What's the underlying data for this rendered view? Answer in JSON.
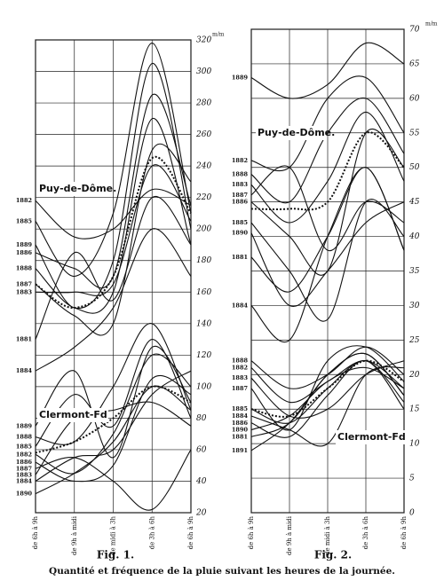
{
  "chart_data": [
    {
      "type": "line",
      "title": "Fig. 1.",
      "y_unit": "m/m",
      "categories": [
        "de 6h à 9h",
        "de 9h à midi",
        "de midi à 3h",
        "de 3h à 6h",
        "de 6h à 9h"
      ],
      "ylim": [
        20,
        320
      ],
      "yticks": [
        20,
        40,
        60,
        80,
        100,
        120,
        140,
        160,
        180,
        200,
        220,
        240,
        260,
        280,
        300,
        320
      ],
      "grid": true,
      "color": "#111",
      "groups": [
        {
          "label": "Puy-de-Dôme.",
          "series": [
            {
              "name": "1882",
              "values": [
                218,
                195,
                200,
                225,
                215
              ]
            },
            {
              "name": "1885",
              "values": [
                205,
                170,
                210,
                318,
                210
              ]
            },
            {
              "name": "1889",
              "values": [
                190,
                150,
                180,
                305,
                200
              ]
            },
            {
              "name": "1886",
              "values": [
                185,
                175,
                170,
                285,
                215
              ]
            },
            {
              "name": "1888",
              "values": [
                175,
                150,
                160,
                270,
                190
              ]
            },
            {
              "name": "1887",
              "values": [
                165,
                145,
                140,
                250,
                230
              ]
            },
            {
              "name": "1883",
              "values": [
                160,
                160,
                165,
                240,
                205
              ]
            },
            {
              "name": "1881",
              "values": [
                130,
                185,
                155,
                220,
                190
              ]
            },
            {
              "name": "1884",
              "values": [
                110,
                125,
                150,
                200,
                170
              ]
            },
            {
              "dashed": true,
              "values": [
                165,
                150,
                170,
                245,
                210
              ]
            }
          ]
        },
        {
          "label": "Clermont-Fd",
          "series": [
            {
              "name": "1889",
              "values": [
                75,
                110,
                55,
                125,
                90
              ]
            },
            {
              "name": "1888",
              "values": [
                68,
                65,
                100,
                140,
                85
              ]
            },
            {
              "name": "1885",
              "values": [
                62,
                95,
                75,
                130,
                80
              ]
            },
            {
              "name": "1882",
              "values": [
                57,
                45,
                70,
                120,
                100
              ]
            },
            {
              "name": "1886",
              "values": [
                52,
                40,
                50,
                105,
                95
              ]
            },
            {
              "name": "1887",
              "values": [
                48,
                55,
                40,
                22,
                60
              ]
            },
            {
              "name": "1883",
              "values": [
                44,
                80,
                85,
                90,
                75
              ]
            },
            {
              "name": "1884",
              "values": [
                40,
                55,
                60,
                95,
                110
              ]
            },
            {
              "name": "1890",
              "values": [
                32,
                45,
                65,
                100,
                85
              ]
            },
            {
              "dashed": true,
              "values": [
                58,
                65,
                80,
                100,
                90
              ]
            }
          ]
        }
      ]
    },
    {
      "type": "line",
      "title": "Fig. 2.",
      "y_unit": "m/m",
      "categories": [
        "de 6h à 9h",
        "de 9h à midi",
        "de midi à 3h",
        "de 3h à 6h",
        "de 6h à 9h"
      ],
      "ylim": [
        0,
        70
      ],
      "yticks": [
        0,
        5,
        10,
        15,
        20,
        25,
        30,
        35,
        40,
        45,
        50,
        55,
        60,
        65,
        70
      ],
      "grid": true,
      "color": "#111",
      "groups": [
        {
          "label": "Puy-de-Dôme.",
          "series": [
            {
              "name": "1889",
              "values": [
                63,
                60,
                62,
                68,
                65
              ]
            },
            {
              "name": "1882",
              "values": [
                51,
                50,
                60,
                63,
                55
              ]
            },
            {
              "name": "1888",
              "values": [
                49,
                45,
                55,
                60,
                52
              ]
            },
            {
              "name": "1883",
              "values": [
                47.5,
                42,
                48,
                58,
                48
              ]
            },
            {
              "name": "1887",
              "values": [
                46,
                50,
                38,
                45,
                42
              ]
            },
            {
              "name": "1886",
              "values": [
                45,
                40,
                35,
                55,
                50
              ]
            },
            {
              "name": "1885",
              "values": [
                42,
                35,
                28,
                45,
                40
              ]
            },
            {
              "name": "1890",
              "values": [
                40.5,
                30,
                35,
                42,
                45
              ]
            },
            {
              "name": "1881",
              "values": [
                37,
                32,
                40,
                50,
                38
              ]
            },
            {
              "name": "1884",
              "values": [
                30,
                25,
                40,
                50,
                38
              ]
            },
            {
              "dashed": true,
              "values": [
                44,
                44,
                45,
                55,
                50
              ]
            }
          ]
        },
        {
          "label": "Clermont-Fd",
          "series": [
            {
              "name": "1888",
              "values": [
                22,
                18,
                20,
                24,
                20
              ]
            },
            {
              "name": "1882",
              "values": [
                21,
                16,
                19,
                22,
                18
              ]
            },
            {
              "name": "1883",
              "values": [
                19.5,
                14,
                15,
                20,
                22
              ]
            },
            {
              "name": "1887",
              "values": [
                18,
                12,
                22,
                24,
                19
              ]
            },
            {
              "name": "1885",
              "values": [
                15,
                13,
                18,
                22,
                16
              ]
            },
            {
              "name": "1884",
              "values": [
                14,
                12,
                10,
                20,
                21
              ]
            },
            {
              "name": "1886",
              "values": [
                13,
                11,
                17,
                22,
                15
              ]
            },
            {
              "name": "1890",
              "values": [
                12,
                14,
                19,
                21,
                18
              ]
            },
            {
              "name": "1881",
              "values": [
                11,
                13,
                20,
                23,
                17
              ]
            },
            {
              "name": "1891",
              "values": [
                9,
                13,
                20,
                23,
                17
              ]
            },
            {
              "dashed": true,
              "values": [
                15,
                14,
                18,
                22,
                19
              ]
            }
          ]
        }
      ]
    }
  ],
  "caption": "Quantité et fréquence de la pluie suivant les heures de la journée."
}
